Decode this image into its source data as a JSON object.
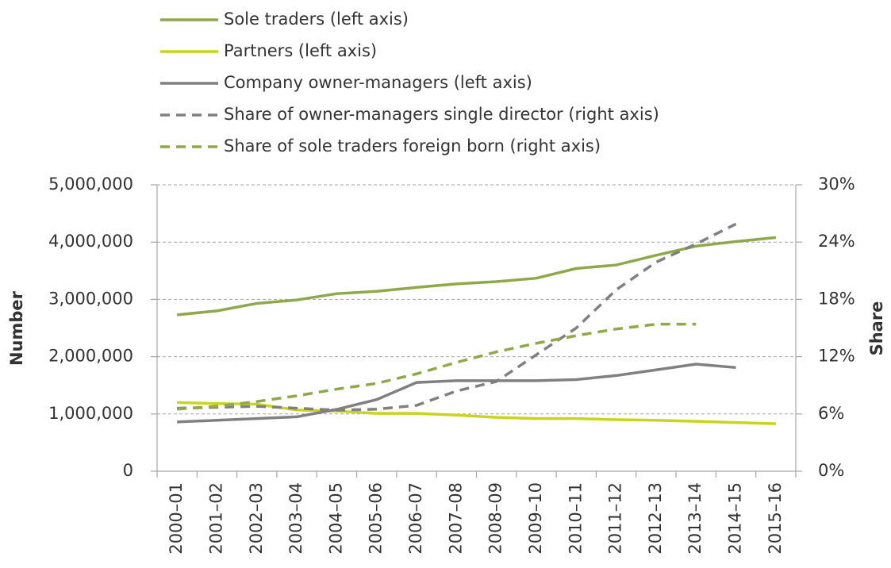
{
  "chart_data": {
    "type": "line",
    "y_label": "Number",
    "y2_label": "Share",
    "categories": [
      "2000–01",
      "2001–02",
      "2002–03",
      "2003–04",
      "2004–05",
      "2005–06",
      "2006–07",
      "2007–08",
      "2008–09",
      "2009–10",
      "2010–11",
      "2011–12",
      "2012–13",
      "2013–14",
      "2014–15",
      "2015–16"
    ],
    "series": [
      {
        "name": "Sole traders (left axis)",
        "color": "#8fa84a",
        "dash": false,
        "values": [
          2730000,
          2800000,
          2930000,
          2990000,
          3100000,
          3140000,
          3210000,
          3270000,
          3310000,
          3370000,
          3540000,
          3600000,
          3770000,
          3930000,
          4010000,
          4080000
        ]
      },
      {
        "name": "Partners (left axis)",
        "color": "#c9d41c",
        "dash": false,
        "values": [
          1200000,
          1180000,
          1170000,
          1070000,
          1050000,
          1010000,
          1010000,
          980000,
          940000,
          920000,
          920000,
          900000,
          890000,
          870000,
          850000,
          830000
        ]
      },
      {
        "name": "Company owner-managers (left axis)",
        "color": "#808080",
        "dash": false,
        "values": [
          860000,
          890000,
          920000,
          950000,
          1080000,
          1250000,
          1550000,
          1580000,
          1580000,
          1580000,
          1600000,
          1670000,
          1770000,
          1870000,
          1810000,
          null
        ]
      },
      {
        "name": "Share of owner-managers single director (right axis)",
        "color": "#808080",
        "dash": true,
        "axis": "y2",
        "values": [
          6.6,
          6.7,
          6.8,
          6.6,
          6.4,
          6.5,
          6.9,
          8.4,
          9.4,
          12.2,
          15.0,
          19.0,
          21.9,
          23.8,
          25.9,
          null
        ]
      },
      {
        "name": "Share of sole traders foreign born (right axis)",
        "color": "#8fa84a",
        "dash": true,
        "axis": "y2",
        "values": [
          6.5,
          6.8,
          7.3,
          7.9,
          8.6,
          9.2,
          10.2,
          11.4,
          12.5,
          13.4,
          14.2,
          14.9,
          15.4,
          15.4,
          null,
          null
        ]
      }
    ],
    "ylim": [
      0,
      5000000
    ],
    "yticks": [
      0,
      {
        "value": 1000000,
        "label": "1,000,000"
      },
      {
        "value": 2000000,
        "label": "2,000,000"
      },
      {
        "value": 3000000,
        "label": "3,000,000"
      },
      {
        "value": 4000000,
        "label": "4,000,000"
      },
      {
        "value": 5000000,
        "label": "5,000,000"
      }
    ],
    "y2lim": [
      0,
      30
    ],
    "y2ticks": [
      {
        "value": 0,
        "label": "0%"
      },
      {
        "value": 6,
        "label": "6%"
      },
      {
        "value": 12,
        "label": "12%"
      },
      {
        "value": 18,
        "label": "18%"
      },
      {
        "value": 24,
        "label": "24%"
      },
      {
        "value": 30,
        "label": "30%"
      }
    ],
    "grid": true
  }
}
